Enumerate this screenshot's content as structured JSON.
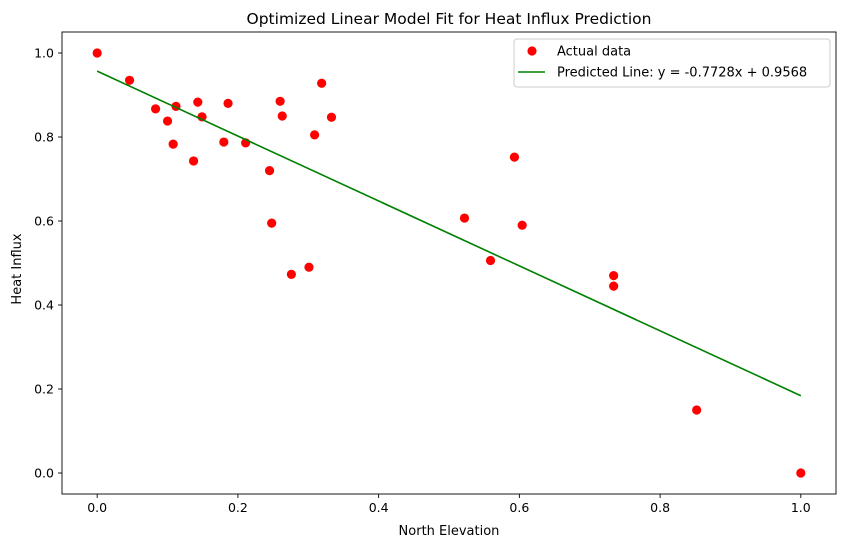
{
  "chart_data": {
    "type": "scatter",
    "title": "Optimized Linear Model Fit for Heat Influx Prediction",
    "xlabel": "North Elevation",
    "ylabel": "Heat Influx",
    "xlim": [
      -0.05,
      1.05
    ],
    "ylim": [
      -0.05,
      1.05
    ],
    "xticks": [
      0.0,
      0.2,
      0.4,
      0.6,
      0.8,
      1.0
    ],
    "yticks": [
      0.0,
      0.2,
      0.4,
      0.6,
      0.8,
      1.0
    ],
    "xtick_labels": [
      "0.0",
      "0.2",
      "0.4",
      "0.6",
      "0.8",
      "1.0"
    ],
    "ytick_labels": [
      "0.0",
      "0.2",
      "0.4",
      "0.6",
      "0.8",
      "1.0"
    ],
    "grid": false,
    "legend_position": "top-right",
    "series": [
      {
        "name": "Actual data",
        "kind": "scatter",
        "color": "#ff0000",
        "points": [
          [
            0.0,
            1.0
          ],
          [
            0.046,
            0.935
          ],
          [
            0.083,
            0.867
          ],
          [
            0.1,
            0.838
          ],
          [
            0.108,
            0.783
          ],
          [
            0.112,
            0.873
          ],
          [
            0.137,
            0.743
          ],
          [
            0.143,
            0.883
          ],
          [
            0.149,
            0.848
          ],
          [
            0.18,
            0.788
          ],
          [
            0.186,
            0.88
          ],
          [
            0.211,
            0.786
          ],
          [
            0.245,
            0.72
          ],
          [
            0.248,
            0.595
          ],
          [
            0.26,
            0.885
          ],
          [
            0.263,
            0.85
          ],
          [
            0.276,
            0.473
          ],
          [
            0.301,
            0.49
          ],
          [
            0.309,
            0.805
          ],
          [
            0.319,
            0.928
          ],
          [
            0.333,
            0.847
          ],
          [
            0.522,
            0.607
          ],
          [
            0.559,
            0.506
          ],
          [
            0.593,
            0.752
          ],
          [
            0.604,
            0.59
          ],
          [
            0.734,
            0.47
          ],
          [
            0.734,
            0.445
          ],
          [
            0.852,
            0.15
          ],
          [
            1.0,
            0.0
          ]
        ]
      },
      {
        "name": "Predicted Line: y = -0.7728x + 0.9568",
        "kind": "line",
        "color": "#008000",
        "slope": -0.7728,
        "intercept": 0.9568,
        "x_range": [
          0.0,
          1.0
        ]
      }
    ]
  }
}
